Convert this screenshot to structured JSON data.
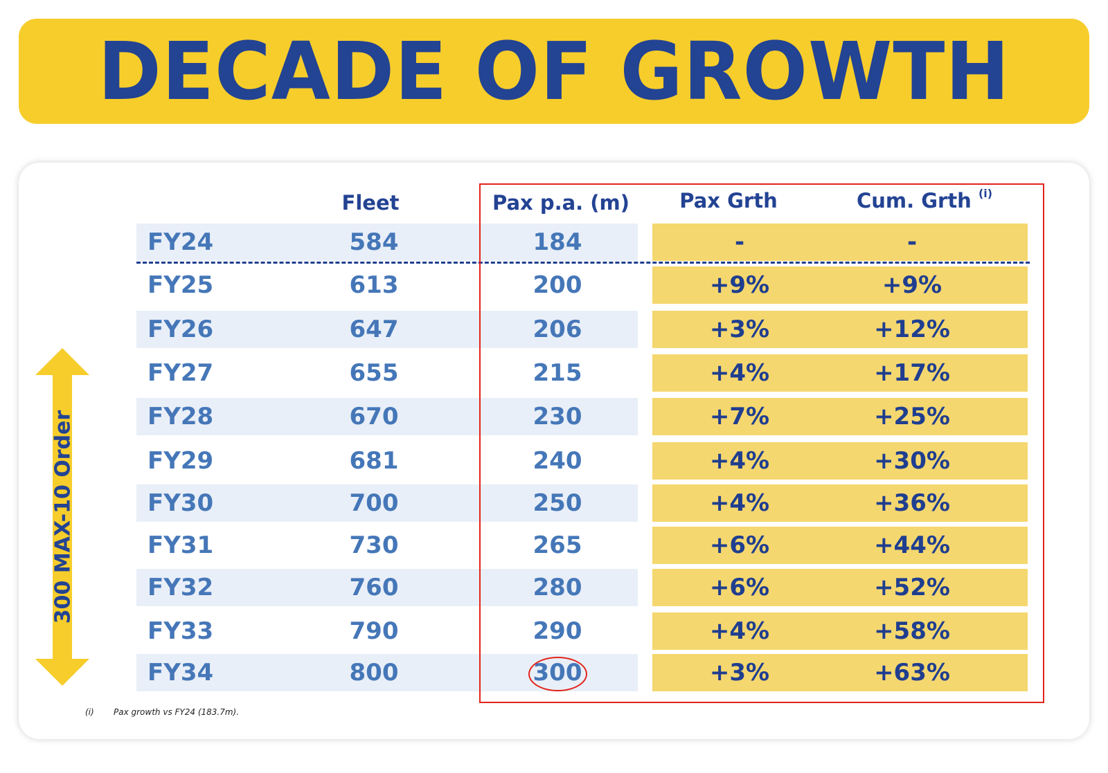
{
  "title": "DECADE OF GROWTH",
  "headers": {
    "fleet": "Fleet",
    "pax": "Pax p.a. (m)",
    "pax_grth": "Pax Grth",
    "cum_grth": "Cum. Grth",
    "cum_grth_sup": "(i)"
  },
  "arrow_label": "300 MAX-10 Order",
  "footnote": {
    "marker": "(i)",
    "text": "Pax growth vs FY24 (183.7m)."
  },
  "colors": {
    "navy": "#234393",
    "yellow": "#f7cd2b",
    "highlight_red": "#e2231a"
  },
  "chart_data": {
    "type": "table",
    "columns": [
      "",
      "Fleet",
      "Pax p.a. (m)",
      "Pax Grth",
      "Cum. Grth (i)"
    ],
    "rows": [
      [
        "FY24",
        "584",
        "184",
        "-",
        "-"
      ],
      [
        "FY25",
        "613",
        "200",
        "+9%",
        "+9%"
      ],
      [
        "FY26",
        "647",
        "206",
        "+3%",
        "+12%"
      ],
      [
        "FY27",
        "655",
        "215",
        "+4%",
        "+17%"
      ],
      [
        "FY28",
        "670",
        "230",
        "+7%",
        "+25%"
      ],
      [
        "FY29",
        "681",
        "240",
        "+4%",
        "+30%"
      ],
      [
        "FY30",
        "700",
        "250",
        "+4%",
        "+36%"
      ],
      [
        "FY31",
        "730",
        "265",
        "+6%",
        "+44%"
      ],
      [
        "FY32",
        "760",
        "280",
        "+6%",
        "+52%"
      ],
      [
        "FY33",
        "790",
        "290",
        "+4%",
        "+58%"
      ],
      [
        "FY34",
        "800",
        "300",
        "+3%",
        "+63%"
      ]
    ],
    "highlighted_cell": {
      "row": "FY34",
      "column": "Pax p.a. (m)",
      "value": "300"
    }
  }
}
